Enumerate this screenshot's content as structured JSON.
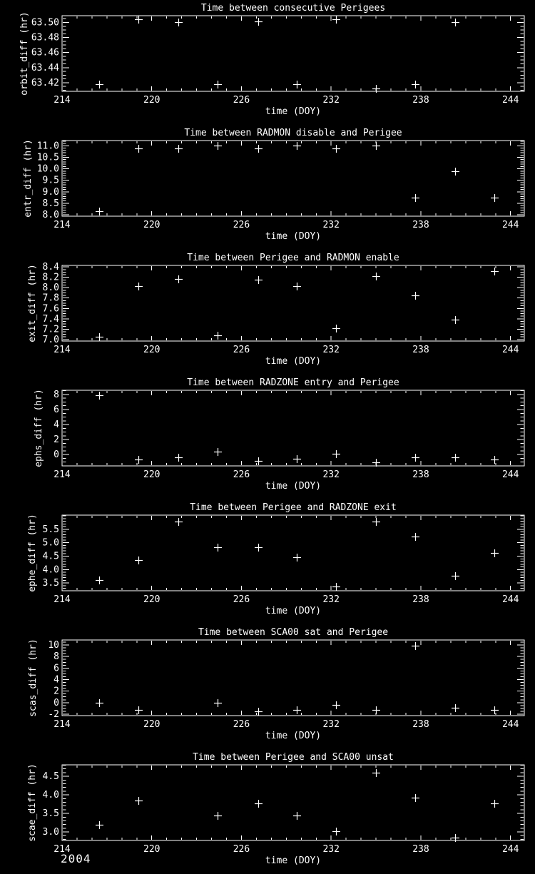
{
  "page": {
    "background": "#000000",
    "foreground": "#ffffff",
    "year_label": "2004"
  },
  "chart_data": [
    {
      "id": "orbit_diff",
      "type": "scatter",
      "marker": "plus",
      "title": "Time between consecutive Perigees",
      "xlabel": "time (DOY)",
      "ylabel": "orbit_diff (hr)",
      "xlim": [
        214,
        244.92
      ],
      "ylim": [
        63.4085,
        63.509
      ],
      "x_major_ticks": [
        214,
        220,
        226,
        232,
        238,
        244
      ],
      "x_tick_labels": [
        "214",
        "220",
        "226",
        "232",
        "238",
        "244"
      ],
      "x_minor_step": 1,
      "y_major_ticks": [
        63.42,
        63.44,
        63.46,
        63.48,
        63.5
      ],
      "y_tick_labels": [
        "63.42",
        "63.44",
        "63.46",
        "63.48",
        "63.50"
      ],
      "y_minor_step": 0.005,
      "x": [
        216.5,
        219.1,
        221.8,
        224.4,
        227.1,
        229.7,
        232.3,
        235.0,
        237.6,
        240.3
      ],
      "y": [
        63.418,
        63.504,
        63.5,
        63.418,
        63.501,
        63.418,
        63.504,
        63.412,
        63.418,
        63.5
      ]
    },
    {
      "id": "entr_diff",
      "type": "scatter",
      "marker": "plus",
      "title": "Time between RADMON disable and Perigee",
      "xlabel": "time (DOY)",
      "ylabel": "entr_diff (hr)",
      "xlim": [
        214,
        244.92
      ],
      "ylim": [
        7.94,
        11.23
      ],
      "x_major_ticks": [
        214,
        220,
        226,
        232,
        238,
        244
      ],
      "x_tick_labels": [
        "214",
        "220",
        "226",
        "232",
        "238",
        "244"
      ],
      "x_minor_step": 1,
      "y_major_ticks": [
        8.0,
        8.5,
        9.0,
        9.5,
        10.0,
        10.5,
        11.0
      ],
      "y_tick_labels": [
        "8.0",
        "8.5",
        "9.0",
        "9.5",
        "10.0",
        "10.5",
        "11.0"
      ],
      "y_minor_step": 0.1,
      "x": [
        216.5,
        219.1,
        221.8,
        224.4,
        227.1,
        229.7,
        232.3,
        235.0,
        237.6,
        240.3,
        242.9
      ],
      "y": [
        8.15,
        10.9,
        10.9,
        11.0,
        10.9,
        11.0,
        10.9,
        11.0,
        8.75,
        9.9,
        8.75
      ]
    },
    {
      "id": "exit_diff",
      "type": "scatter",
      "marker": "plus",
      "title": "Time between Perigee and RADMON enable",
      "xlabel": "time (DOY)",
      "ylabel": "exit_diff (hr)",
      "xlim": [
        214,
        244.92
      ],
      "ylim": [
        6.97,
        8.43
      ],
      "x_major_ticks": [
        214,
        220,
        226,
        232,
        238,
        244
      ],
      "x_tick_labels": [
        "214",
        "220",
        "226",
        "232",
        "238",
        "244"
      ],
      "x_minor_step": 1,
      "y_major_ticks": [
        7.0,
        7.2,
        7.4,
        7.6,
        7.8,
        8.0,
        8.2,
        8.4
      ],
      "y_tick_labels": [
        "7.0",
        "7.2",
        "7.4",
        "7.6",
        "7.8",
        "8.0",
        "8.2",
        "8.4"
      ],
      "y_minor_step": 0.05,
      "x": [
        216.5,
        219.1,
        221.8,
        224.4,
        227.1,
        229.7,
        232.3,
        235.0,
        237.6,
        240.3,
        242.9
      ],
      "y": [
        7.05,
        8.03,
        8.17,
        7.08,
        8.15,
        8.03,
        7.22,
        8.22,
        7.85,
        7.38,
        8.32
      ]
    },
    {
      "id": "ephs_diff",
      "type": "scatter",
      "marker": "plus",
      "title": "Time between RADZONE entry and Perigee",
      "xlabel": "time (DOY)",
      "ylabel": "ephs_diff (hr)",
      "xlim": [
        214,
        244.92
      ],
      "ylim": [
        -1.52,
        8.57
      ],
      "x_major_ticks": [
        214,
        220,
        226,
        232,
        238,
        244
      ],
      "x_tick_labels": [
        "214",
        "220",
        "226",
        "232",
        "238",
        "244"
      ],
      "x_minor_step": 1,
      "y_major_ticks": [
        0,
        2,
        4,
        6,
        8
      ],
      "y_tick_labels": [
        "0",
        "2",
        "4",
        "6",
        "8"
      ],
      "y_minor_step": 0.5,
      "x": [
        216.5,
        219.1,
        221.8,
        224.4,
        227.1,
        229.7,
        232.3,
        235.0,
        237.6,
        240.3,
        242.9
      ],
      "y": [
        7.9,
        -0.7,
        -0.4,
        0.4,
        -0.9,
        -0.6,
        0.1,
        -1.0,
        -0.4,
        -0.4,
        -0.7
      ]
    },
    {
      "id": "ephe_diff",
      "type": "scatter",
      "marker": "plus",
      "title": "Time between Perigee and RADZONE exit",
      "xlabel": "time (DOY)",
      "ylabel": "ephe_diff (hr)",
      "xlim": [
        214,
        244.92
      ],
      "ylim": [
        3.21,
        6.03
      ],
      "x_major_ticks": [
        214,
        220,
        226,
        232,
        238,
        244
      ],
      "x_tick_labels": [
        "214",
        "220",
        "226",
        "232",
        "238",
        "244"
      ],
      "x_minor_step": 1,
      "y_major_ticks": [
        3.5,
        4.0,
        4.5,
        5.0,
        5.5
      ],
      "y_tick_labels": [
        "3.5",
        "4.0",
        "4.5",
        "5.0",
        "5.5"
      ],
      "y_minor_step": 0.1,
      "x": [
        216.5,
        219.1,
        221.8,
        224.4,
        227.1,
        229.7,
        232.3,
        235.0,
        237.6,
        240.3,
        242.9
      ],
      "y": [
        3.6,
        4.35,
        5.8,
        4.82,
        4.82,
        4.45,
        3.38,
        5.8,
        5.22,
        3.78,
        4.62
      ]
    },
    {
      "id": "scas_diff",
      "type": "scatter",
      "marker": "plus",
      "title": "Time between SCA00 sat and Perigee",
      "xlabel": "time (DOY)",
      "ylabel": "scas_diff (hr)",
      "xlim": [
        214,
        244.92
      ],
      "ylim": [
        -2.25,
        10.87
      ],
      "x_major_ticks": [
        214,
        220,
        226,
        232,
        238,
        244
      ],
      "x_tick_labels": [
        "214",
        "220",
        "226",
        "232",
        "238",
        "244"
      ],
      "x_minor_step": 1,
      "y_major_ticks": [
        -2,
        0,
        2,
        4,
        6,
        8,
        10
      ],
      "y_tick_labels": [
        "-2",
        "0",
        "2",
        "4",
        "6",
        "8",
        "10"
      ],
      "y_minor_step": 0.5,
      "x": [
        216.5,
        219.1,
        224.4,
        227.1,
        229.7,
        232.3,
        235.0,
        237.6,
        240.3,
        242.9
      ],
      "y": [
        0.0,
        -1.2,
        0.0,
        -1.5,
        -1.3,
        -0.4,
        -1.3,
        9.9,
        -0.9,
        -1.2
      ]
    },
    {
      "id": "scae_diff",
      "type": "scatter",
      "marker": "plus",
      "title": "Time between Perigee and SCA00 unsat",
      "xlabel": "time (DOY)",
      "ylabel": "scae_diff (hr)",
      "xlim": [
        214,
        244.92
      ],
      "ylim": [
        2.77,
        4.81
      ],
      "x_major_ticks": [
        214,
        220,
        226,
        232,
        238,
        244
      ],
      "x_tick_labels": [
        "214",
        "220",
        "226",
        "232",
        "238",
        "244"
      ],
      "x_minor_step": 1,
      "y_major_ticks": [
        3.0,
        3.5,
        4.0,
        4.5
      ],
      "y_tick_labels": [
        "3.0",
        "3.5",
        "4.0",
        "4.5"
      ],
      "y_minor_step": 0.1,
      "x": [
        216.5,
        219.1,
        224.4,
        227.1,
        229.7,
        232.3,
        235.0,
        237.6,
        240.3,
        242.9
      ],
      "y": [
        3.2,
        3.85,
        3.45,
        3.78,
        3.45,
        3.02,
        4.6,
        3.93,
        2.85,
        3.78
      ]
    }
  ]
}
